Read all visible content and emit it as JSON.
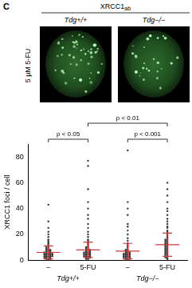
{
  "panel_label": "C",
  "images": {
    "title": {
      "text": "XRCC1",
      "subscript": "ab"
    },
    "columns": [
      "Tdg+/+",
      "Tdg−/−"
    ],
    "row_label": "5 µM 5-FU"
  },
  "chart_data": {
    "type": "scatter",
    "y_label": "XRCC1 foci / cell",
    "categories": [
      "–",
      "5-FU",
      "–",
      "5-FU"
    ],
    "group_labels": [
      "Tdg+/+",
      "Tdg+/+",
      "Tdg−/−",
      "Tdg−/−"
    ],
    "color": "#3a3a3a",
    "values": [
      [
        0,
        0,
        0,
        1,
        1,
        1,
        2,
        2,
        2,
        2,
        3,
        3,
        3,
        3,
        3,
        4,
        4,
        4,
        4,
        4,
        5,
        5,
        5,
        5,
        5,
        6,
        6,
        6,
        6,
        7,
        7,
        7,
        8,
        8,
        8,
        9,
        9,
        10,
        10,
        11,
        12,
        13,
        14,
        15,
        16,
        18,
        20,
        22,
        25,
        30,
        43
      ],
      [
        0,
        1,
        1,
        2,
        2,
        2,
        3,
        3,
        3,
        3,
        4,
        4,
        4,
        4,
        5,
        5,
        5,
        5,
        6,
        6,
        6,
        6,
        7,
        7,
        7,
        8,
        8,
        8,
        9,
        9,
        10,
        10,
        11,
        12,
        13,
        14,
        15,
        16,
        18,
        20,
        22,
        25,
        28,
        32,
        35,
        40,
        45,
        55,
        73,
        77
      ],
      [
        0,
        0,
        1,
        1,
        1,
        2,
        2,
        2,
        2,
        3,
        3,
        3,
        3,
        4,
        4,
        4,
        4,
        5,
        5,
        5,
        5,
        6,
        6,
        6,
        7,
        7,
        8,
        8,
        9,
        10,
        11,
        12,
        13,
        15,
        17,
        20,
        23,
        26,
        28,
        35,
        40,
        45,
        85
      ],
      [
        0,
        1,
        2,
        2,
        3,
        3,
        4,
        4,
        5,
        5,
        6,
        6,
        7,
        7,
        8,
        8,
        9,
        9,
        10,
        10,
        11,
        11,
        12,
        12,
        13,
        13,
        14,
        14,
        15,
        15,
        16,
        16,
        17,
        18,
        19,
        20,
        21,
        22,
        23,
        25,
        26,
        28,
        30,
        32,
        35,
        38,
        40,
        45,
        50,
        55,
        60
      ]
    ],
    "summary": {
      "color": "#d03a3a",
      "mean": [
        6,
        8,
        7,
        12
      ],
      "error": [
        5,
        6,
        6,
        9
      ]
    },
    "comparisons": [
      {
        "groups": [
          0,
          1
        ],
        "label": "p < 0.05"
      },
      {
        "groups": [
          2,
          3
        ],
        "label": "p < 0.001"
      },
      {
        "groups": [
          1,
          3
        ],
        "label": "p < 0.01"
      }
    ],
    "ylim": [
      0,
      90
    ],
    "yticks": [
      0,
      20,
      40,
      60,
      80
    ],
    "grid": false
  }
}
